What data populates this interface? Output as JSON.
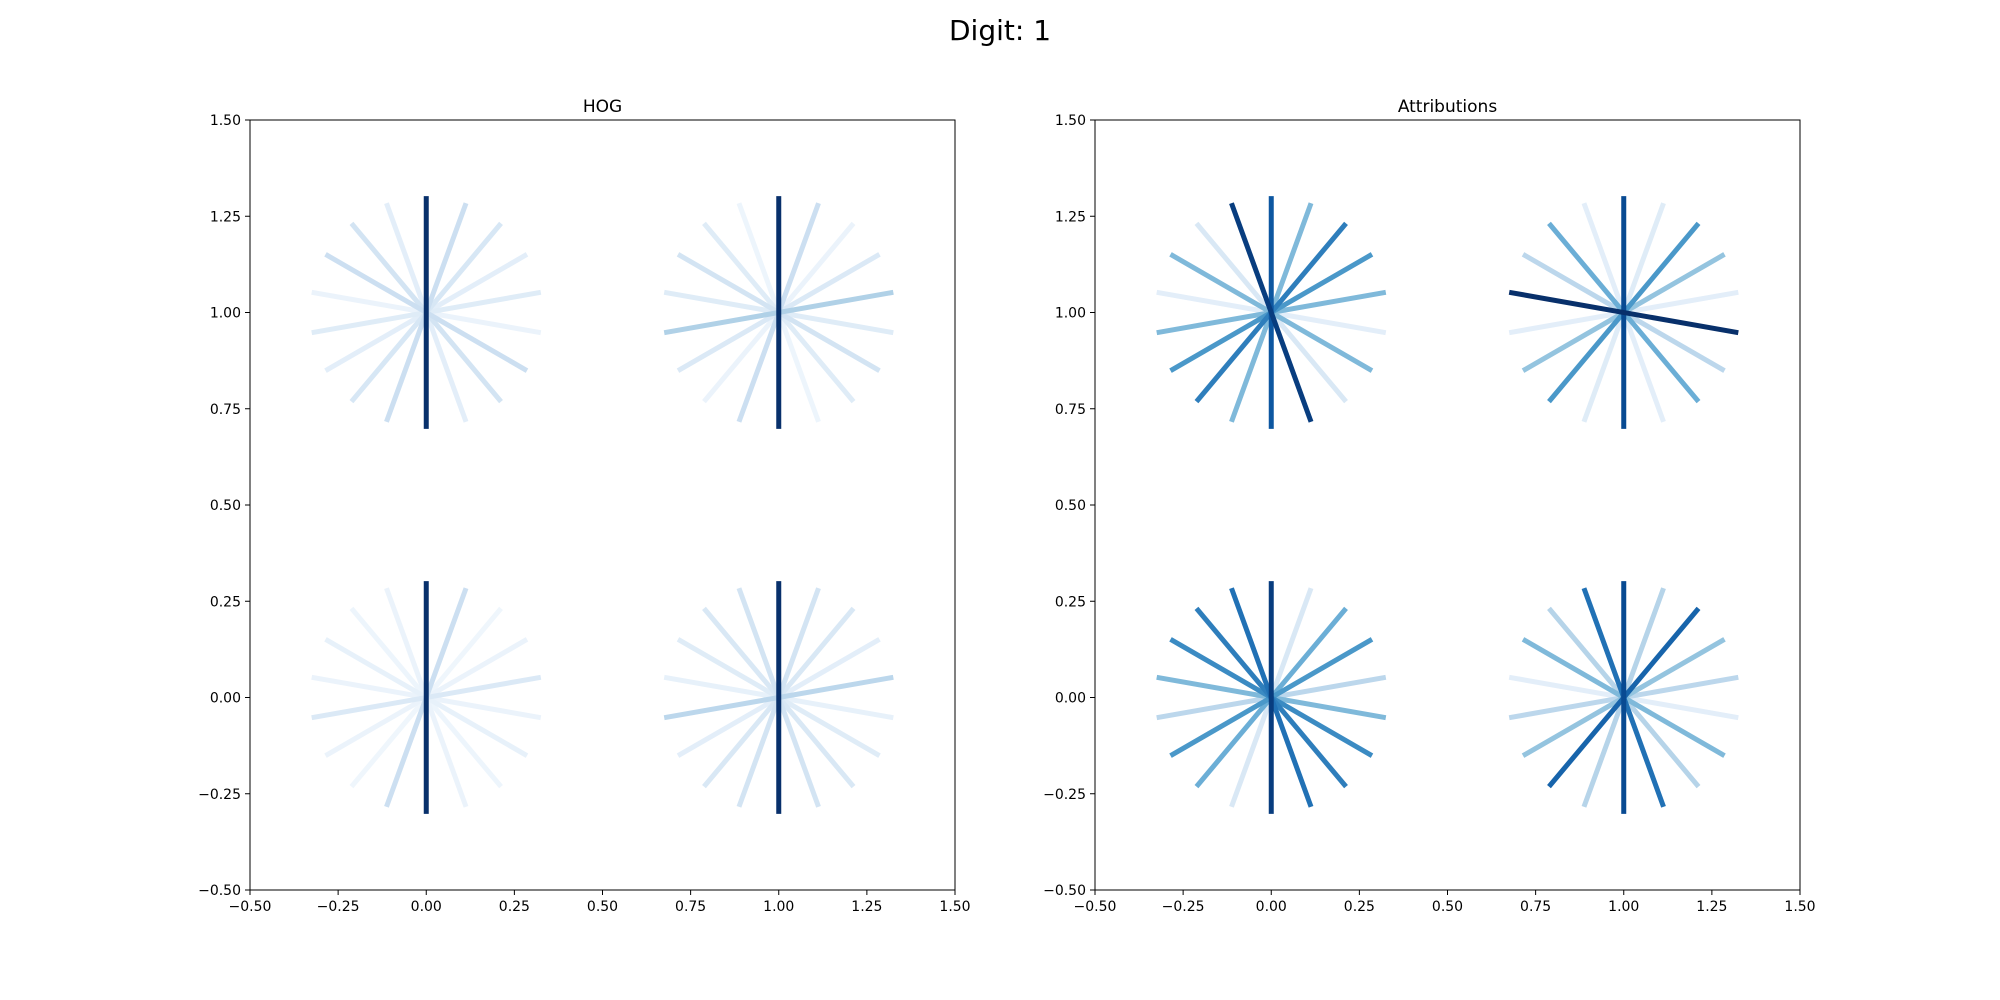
{
  "figure": {
    "title": "Digit: 1"
  },
  "chart_data": [
    {
      "type": "line",
      "title": "HOG",
      "xlabel": "",
      "ylabel": "",
      "xlim": [
        -0.5,
        1.5
      ],
      "ylim": [
        -0.5,
        1.5
      ],
      "xticks": [
        "−0.50",
        "−0.25",
        "0.00",
        "0.25",
        "0.50",
        "0.75",
        "1.00",
        "1.25",
        "1.50"
      ],
      "yticks": [
        "−0.50",
        "−0.25",
        "0.00",
        "0.25",
        "0.50",
        "0.75",
        "1.00",
        "1.25",
        "1.50"
      ],
      "grid": false,
      "colormap": "Blues",
      "glyph_radius": 0.33,
      "cells": [
        {
          "cx": 0,
          "cy": 1,
          "weights": [
            1.0,
            0.1,
            0.18,
            0.22,
            0.06,
            0.12,
            0.1,
            0.16,
            0.22
          ]
        },
        {
          "cx": 1,
          "cy": 1,
          "weights": [
            1.0,
            0.05,
            0.12,
            0.18,
            0.12,
            0.32,
            0.14,
            0.06,
            0.22
          ]
        },
        {
          "cx": 0,
          "cy": 0,
          "weights": [
            1.0,
            0.06,
            0.05,
            0.08,
            0.06,
            0.14,
            0.06,
            0.04,
            0.22
          ]
        },
        {
          "cx": 1,
          "cy": 0,
          "weights": [
            1.0,
            0.18,
            0.15,
            0.12,
            0.08,
            0.28,
            0.1,
            0.15,
            0.18
          ]
        }
      ]
    },
    {
      "type": "line",
      "title": "Attributions",
      "xlabel": "",
      "ylabel": "",
      "xlim": [
        -0.5,
        1.5
      ],
      "ylim": [
        -0.5,
        1.5
      ],
      "xticks": [
        "−0.50",
        "−0.25",
        "0.00",
        "0.25",
        "0.50",
        "0.75",
        "1.00",
        "1.25",
        "1.50"
      ],
      "yticks": [
        "−0.50",
        "−0.25",
        "0.00",
        "0.25",
        "0.50",
        "0.75",
        "1.00",
        "1.25",
        "1.50"
      ],
      "grid": false,
      "colormap": "Blues",
      "glyph_radius": 0.33,
      "cells": [
        {
          "cx": 0,
          "cy": 1,
          "weights": [
            0.85,
            0.95,
            0.15,
            0.45,
            0.1,
            0.45,
            0.6,
            0.7,
            0.45
          ]
        },
        {
          "cx": 1,
          "cy": 1,
          "weights": [
            0.9,
            0.1,
            0.5,
            0.28,
            1.0,
            0.1,
            0.4,
            0.6,
            0.12
          ]
        },
        {
          "cx": 0,
          "cy": 0,
          "weights": [
            0.95,
            0.75,
            0.7,
            0.65,
            0.45,
            0.28,
            0.6,
            0.5,
            0.15
          ]
        },
        {
          "cx": 1,
          "cy": 0,
          "weights": [
            0.9,
            0.75,
            0.3,
            0.45,
            0.1,
            0.28,
            0.4,
            0.8,
            0.3
          ]
        }
      ]
    }
  ]
}
